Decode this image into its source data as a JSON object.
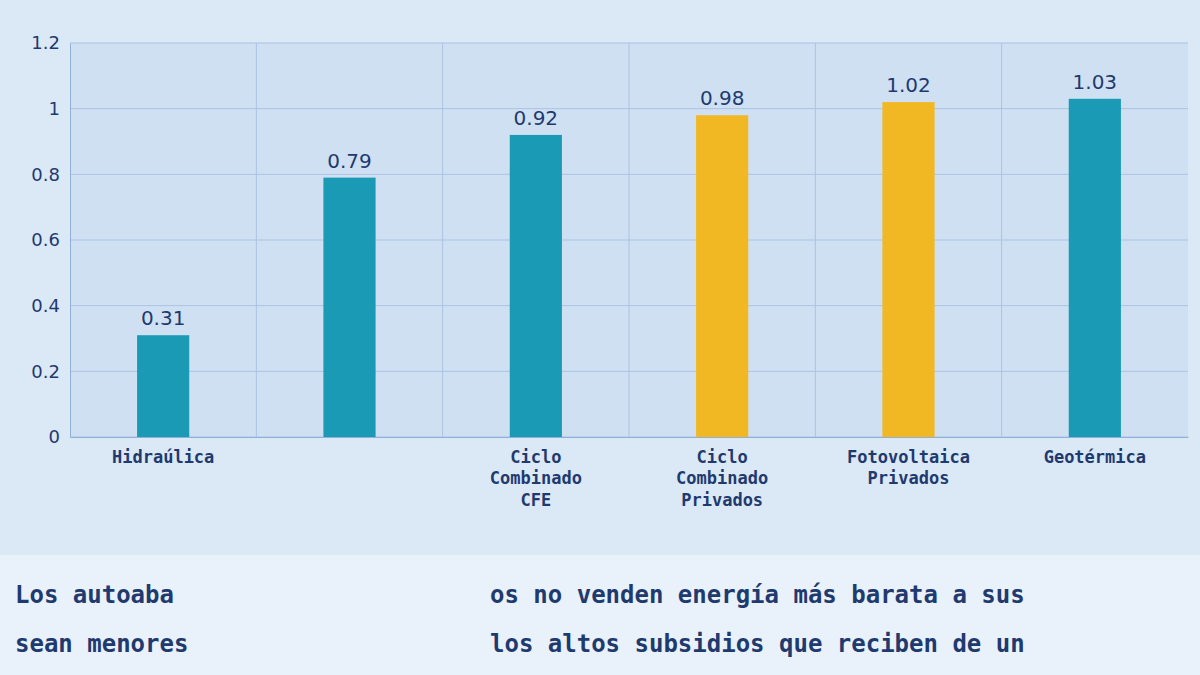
{
  "chart_data": {
    "type": "bar",
    "categories": [
      "Hidraúlica",
      null,
      "Ciclo Combinado CFE",
      "Ciclo Combinado Privados",
      "Fotovoltaica Privados",
      "Geotérmica"
    ],
    "values": [
      0.31,
      0.79,
      0.92,
      0.98,
      1.02,
      1.03
    ],
    "colors": [
      "#1b9ab6",
      "#1b9ab6",
      "#1b9ab6",
      "#f2b824",
      "#f2b824",
      "#1b9ab6"
    ],
    "ylim": [
      0,
      1.2
    ],
    "yticks": [
      0,
      0.2,
      0.4,
      0.6,
      0.8,
      1,
      1.2
    ],
    "grid": true,
    "data_labels": true,
    "annotations": [
      "Los autoaba",
      "os no venden energía más barata a sus",
      "sean menores",
      "los altos subsidios que reciben de un"
    ]
  }
}
